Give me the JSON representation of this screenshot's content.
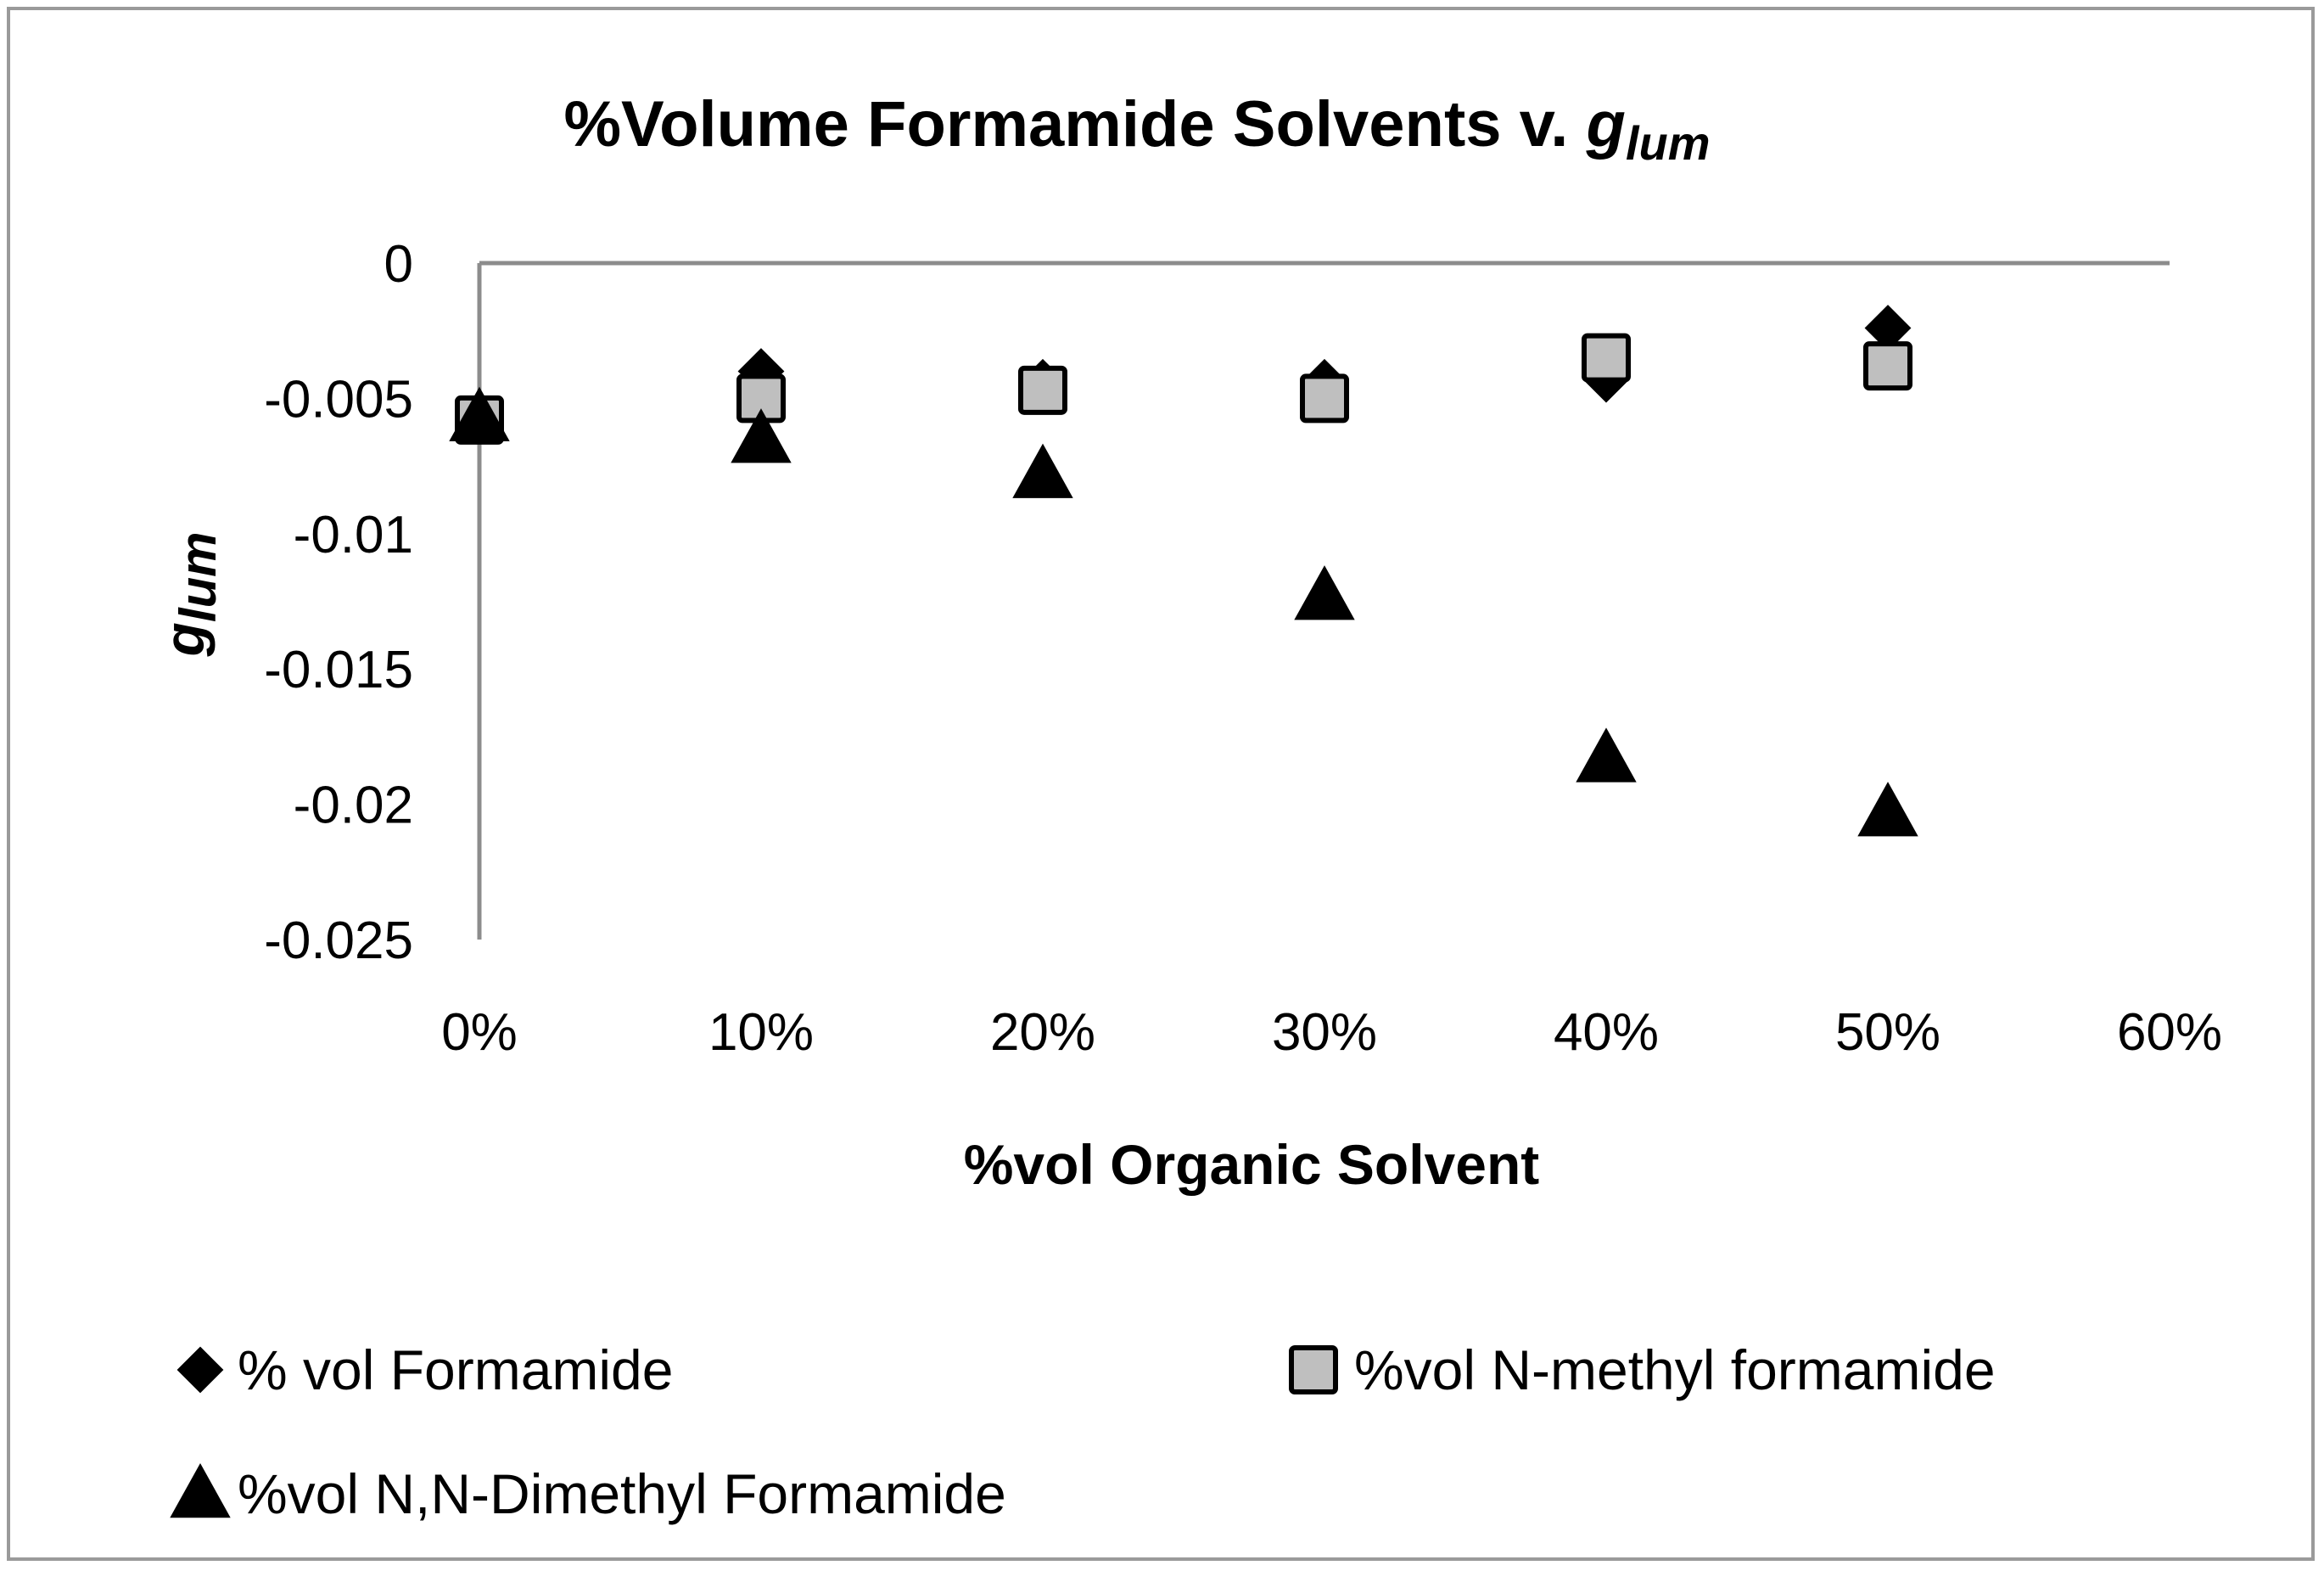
{
  "chart_data": {
    "type": "scatter",
    "title": "%Volume Formamide Solvents v. ",
    "title_italic": "g",
    "title_subscript": "lum",
    "xlabel": "%vol Organic Solvent",
    "ylabel": "g",
    "ylabel_subscript": "lum",
    "xlim": [
      0,
      0.6
    ],
    "ylim": [
      -0.025,
      0
    ],
    "x_ticks": [
      "0%",
      "10%",
      "20%",
      "30%",
      "40%",
      "50%",
      "60%"
    ],
    "y_ticks": [
      "0",
      "-0.005",
      "-0.01",
      "-0.015",
      "-0.02",
      "-0.025"
    ],
    "grid": false,
    "legend_position": "bottom",
    "series": [
      {
        "name": "% vol Formamide",
        "marker": "diamond",
        "color": "#000000",
        "x": [
          0,
          0.1,
          0.2,
          0.3,
          0.4,
          0.5
        ],
        "y": [
          -0.0058,
          -0.004,
          -0.0044,
          -0.0044,
          -0.0043,
          -0.0024
        ]
      },
      {
        "name": "%vol N-methyl formamide",
        "marker": "square",
        "color": "#bfbfbf",
        "x": [
          0,
          0.1,
          0.2,
          0.3,
          0.4,
          0.5
        ],
        "y": [
          -0.0058,
          -0.005,
          -0.0047,
          -0.005,
          -0.0035,
          -0.0038
        ]
      },
      {
        "name": "%vol N,N-Dimethyl Formamide",
        "marker": "triangle",
        "color": "#000000",
        "x": [
          0,
          0.1,
          0.2,
          0.3,
          0.4,
          0.5
        ],
        "y": [
          -0.0057,
          -0.0065,
          -0.0078,
          -0.0123,
          -0.0183,
          -0.0203
        ]
      }
    ]
  }
}
